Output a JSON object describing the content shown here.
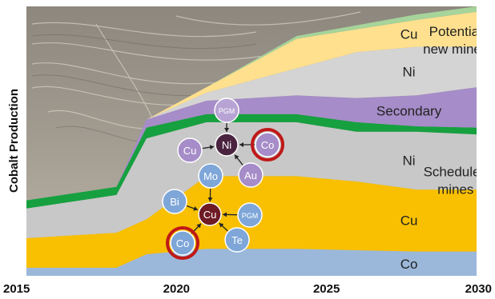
{
  "chart_data": {
    "type": "area",
    "title": "",
    "ylabel": "Cobalt Production",
    "xlabel": "",
    "x_ticks": [
      "2015",
      "2020",
      "2025",
      "2030"
    ],
    "xlim": [
      2015,
      2030
    ],
    "ylim": [
      0,
      100
    ],
    "x": [
      2015,
      2018,
      2019,
      2021,
      2024,
      2026,
      2028,
      2030
    ],
    "series": [
      {
        "name": "",
        "label": "Co",
        "color": "#9bb8da",
        "values": [
          3,
          3,
          8,
          10,
          10,
          9.5,
          9,
          9
        ]
      },
      {
        "name": "",
        "label": "Cu",
        "color": "#f8c000",
        "values": [
          14,
          16,
          21,
          37,
          37,
          35,
          32,
          32
        ]
      },
      {
        "name": "",
        "label": "Ni",
        "color": "#c8c8c8",
        "values": [
          25,
          30,
          51,
          57,
          57,
          53.5,
          53.5,
          52.5
        ]
      },
      {
        "name": "",
        "label": "",
        "color": "#16a040",
        "values": [
          28,
          33,
          55,
          60,
          60,
          57,
          55.5,
          55
        ]
      },
      {
        "name": "",
        "label": "Secondary",
        "color": "#a68cc8",
        "values": [
          28,
          33,
          58,
          65,
          67,
          66,
          67,
          70
        ]
      },
      {
        "name": "",
        "label": "Ni",
        "color": "#d4d4d4",
        "values": [
          28,
          33,
          58,
          68,
          77,
          83,
          85,
          85
        ]
      },
      {
        "name": "",
        "label": "Cu",
        "color": "#ffe08e",
        "values": [
          28,
          33,
          58,
          70,
          88,
          91.5,
          95,
          98
        ]
      },
      {
        "name": "",
        "label": "",
        "color": "#a6d49a",
        "values": [
          28,
          33,
          58,
          70,
          89,
          93,
          97,
          100
        ]
      }
    ],
    "annotations": {
      "scheduled": [
        "Scheduled",
        "mines"
      ],
      "potential": [
        "Potential",
        "new mines"
      ],
      "layer_labels": [
        "Co",
        "Cu",
        "Ni",
        "Secondary",
        "Ni",
        "Cu"
      ]
    },
    "networks": [
      {
        "center": "Ni",
        "center_color": "#4a2340",
        "nodes": [
          {
            "label": "PGM",
            "color": "#b8a4d4"
          },
          {
            "label": "Cu",
            "color": "#a68cc8"
          },
          {
            "label": "Au",
            "color": "#a68cc8"
          },
          {
            "label": "Co",
            "color": "#a68cc8",
            "highlight": true
          }
        ]
      },
      {
        "center": "Cu",
        "center_color": "#6e1b26",
        "nodes": [
          {
            "label": "Mo",
            "color": "#7ea6d8"
          },
          {
            "label": "Bi",
            "color": "#7ea6d8"
          },
          {
            "label": "PGM",
            "color": "#7ea6d8"
          },
          {
            "label": "Te",
            "color": "#7ea6d8"
          },
          {
            "label": "Co",
            "color": "#7ea6d8",
            "highlight": true
          }
        ]
      }
    ],
    "highlight_ring_color": "#c01818",
    "background": "open-pit mine photograph"
  }
}
